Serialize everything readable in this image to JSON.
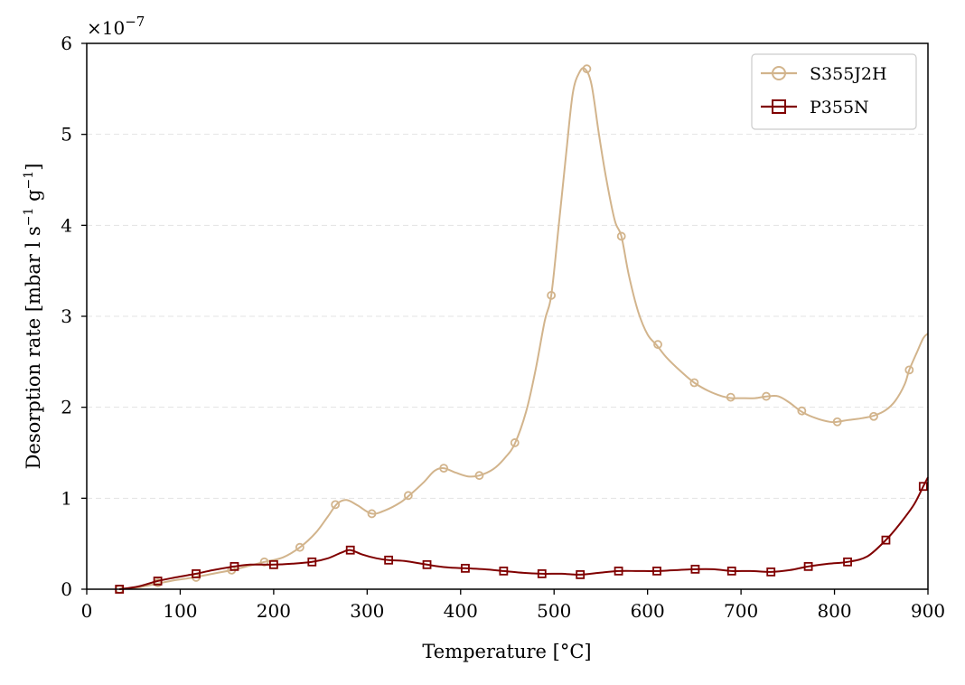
{
  "chart_data": {
    "type": "line",
    "xlabel": "Temperature [°C]",
    "ylabel_main": "Desorption rate [mbar l s",
    "ylabel_sup1": "−1",
    "ylabel_mid": " g",
    "ylabel_sup2": "−1",
    "ylabel_end": "]",
    "scale_base": "×10",
    "scale_exp": "−7",
    "xlim": [
      0,
      900
    ],
    "ylim": [
      0,
      6
    ],
    "x_ticks": [
      0,
      100,
      200,
      300,
      400,
      500,
      600,
      700,
      800,
      900
    ],
    "x_tick_labels": [
      "0",
      "100",
      "200",
      "300",
      "400",
      "500",
      "600",
      "700",
      "800",
      "900"
    ],
    "y_ticks": [
      0,
      1,
      2,
      3,
      4,
      5,
      6
    ],
    "y_tick_labels": [
      "0",
      "1",
      "2",
      "3",
      "4",
      "5",
      "6"
    ],
    "grid": "horizontal dashed",
    "legend_position": "top-right",
    "series": [
      {
        "name": "S355J2H",
        "color": "#d2b48c",
        "marker": "circle",
        "curve": [
          [
            35,
            0.0
          ],
          [
            55,
            0.02
          ],
          [
            75,
            0.06
          ],
          [
            95,
            0.1
          ],
          [
            115,
            0.13
          ],
          [
            135,
            0.17
          ],
          [
            155,
            0.21
          ],
          [
            175,
            0.26
          ],
          [
            190,
            0.3
          ],
          [
            210,
            0.35
          ],
          [
            228,
            0.46
          ],
          [
            245,
            0.62
          ],
          [
            258,
            0.8
          ],
          [
            268,
            0.94
          ],
          [
            278,
            0.98
          ],
          [
            290,
            0.92
          ],
          [
            305,
            0.83
          ],
          [
            320,
            0.87
          ],
          [
            335,
            0.95
          ],
          [
            345,
            1.03
          ],
          [
            360,
            1.17
          ],
          [
            372,
            1.3
          ],
          [
            382,
            1.33
          ],
          [
            395,
            1.28
          ],
          [
            408,
            1.24
          ],
          [
            420,
            1.25
          ],
          [
            435,
            1.32
          ],
          [
            448,
            1.45
          ],
          [
            458,
            1.6
          ],
          [
            470,
            1.95
          ],
          [
            480,
            2.4
          ],
          [
            490,
            2.95
          ],
          [
            497,
            3.23
          ],
          [
            505,
            4.0
          ],
          [
            513,
            4.8
          ],
          [
            520,
            5.45
          ],
          [
            527,
            5.68
          ],
          [
            533,
            5.72
          ],
          [
            540,
            5.55
          ],
          [
            548,
            5.0
          ],
          [
            556,
            4.5
          ],
          [
            565,
            4.05
          ],
          [
            572,
            3.88
          ],
          [
            580,
            3.45
          ],
          [
            590,
            3.05
          ],
          [
            600,
            2.8
          ],
          [
            610,
            2.68
          ],
          [
            620,
            2.55
          ],
          [
            635,
            2.4
          ],
          [
            650,
            2.27
          ],
          [
            665,
            2.18
          ],
          [
            680,
            2.12
          ],
          [
            690,
            2.1
          ],
          [
            700,
            2.1
          ],
          [
            715,
            2.1
          ],
          [
            728,
            2.12
          ],
          [
            740,
            2.12
          ],
          [
            752,
            2.05
          ],
          [
            765,
            1.95
          ],
          [
            780,
            1.88
          ],
          [
            795,
            1.84
          ],
          [
            803,
            1.84
          ],
          [
            815,
            1.86
          ],
          [
            830,
            1.88
          ],
          [
            843,
            1.91
          ],
          [
            855,
            1.97
          ],
          [
            865,
            2.07
          ],
          [
            875,
            2.25
          ],
          [
            880,
            2.41
          ],
          [
            888,
            2.6
          ],
          [
            895,
            2.76
          ],
          [
            900,
            2.81
          ]
        ],
        "markers": [
          [
            35,
            0.0
          ],
          [
            76,
            0.07
          ],
          [
            117,
            0.13
          ],
          [
            155,
            0.21
          ],
          [
            190,
            0.3
          ],
          [
            228,
            0.46
          ],
          [
            266,
            0.93
          ],
          [
            305,
            0.83
          ],
          [
            344,
            1.03
          ],
          [
            382,
            1.33
          ],
          [
            420,
            1.25
          ],
          [
            458,
            1.61
          ],
          [
            497,
            3.23
          ],
          [
            535,
            5.72
          ],
          [
            572,
            3.88
          ],
          [
            611,
            2.69
          ],
          [
            650,
            2.27
          ],
          [
            689,
            2.11
          ],
          [
            727,
            2.12
          ],
          [
            765,
            1.96
          ],
          [
            803,
            1.84
          ],
          [
            842,
            1.9
          ],
          [
            880,
            2.41
          ]
        ]
      },
      {
        "name": "P355N",
        "color": "#800000",
        "marker": "square",
        "curve": [
          [
            35,
            0.0
          ],
          [
            55,
            0.03
          ],
          [
            76,
            0.09
          ],
          [
            95,
            0.13
          ],
          [
            117,
            0.17
          ],
          [
            135,
            0.21
          ],
          [
            158,
            0.25
          ],
          [
            175,
            0.27
          ],
          [
            200,
            0.27
          ],
          [
            220,
            0.28
          ],
          [
            241,
            0.3
          ],
          [
            258,
            0.34
          ],
          [
            272,
            0.4
          ],
          [
            282,
            0.43
          ],
          [
            295,
            0.38
          ],
          [
            310,
            0.34
          ],
          [
            323,
            0.32
          ],
          [
            340,
            0.31
          ],
          [
            364,
            0.27
          ],
          [
            385,
            0.24
          ],
          [
            405,
            0.23
          ],
          [
            425,
            0.22
          ],
          [
            446,
            0.2
          ],
          [
            467,
            0.18
          ],
          [
            487,
            0.17
          ],
          [
            508,
            0.17
          ],
          [
            528,
            0.16
          ],
          [
            548,
            0.18
          ],
          [
            569,
            0.2
          ],
          [
            590,
            0.2
          ],
          [
            610,
            0.2
          ],
          [
            630,
            0.21
          ],
          [
            651,
            0.22
          ],
          [
            670,
            0.22
          ],
          [
            690,
            0.2
          ],
          [
            710,
            0.2
          ],
          [
            732,
            0.19
          ],
          [
            752,
            0.21
          ],
          [
            772,
            0.25
          ],
          [
            794,
            0.28
          ],
          [
            814,
            0.3
          ],
          [
            835,
            0.36
          ],
          [
            855,
            0.54
          ],
          [
            870,
            0.72
          ],
          [
            885,
            0.93
          ],
          [
            895,
            1.13
          ],
          [
            900,
            1.23
          ]
        ],
        "markers": [
          [
            35,
            0.0
          ],
          [
            76,
            0.09
          ],
          [
            117,
            0.17
          ],
          [
            158,
            0.25
          ],
          [
            200,
            0.27
          ],
          [
            241,
            0.3
          ],
          [
            282,
            0.43
          ],
          [
            323,
            0.32
          ],
          [
            364,
            0.27
          ],
          [
            405,
            0.23
          ],
          [
            446,
            0.2
          ],
          [
            487,
            0.17
          ],
          [
            528,
            0.16
          ],
          [
            569,
            0.2
          ],
          [
            610,
            0.2
          ],
          [
            651,
            0.22
          ],
          [
            690,
            0.2
          ],
          [
            732,
            0.19
          ],
          [
            772,
            0.25
          ],
          [
            814,
            0.3
          ],
          [
            855,
            0.54
          ],
          [
            895,
            1.13
          ]
        ]
      }
    ]
  }
}
